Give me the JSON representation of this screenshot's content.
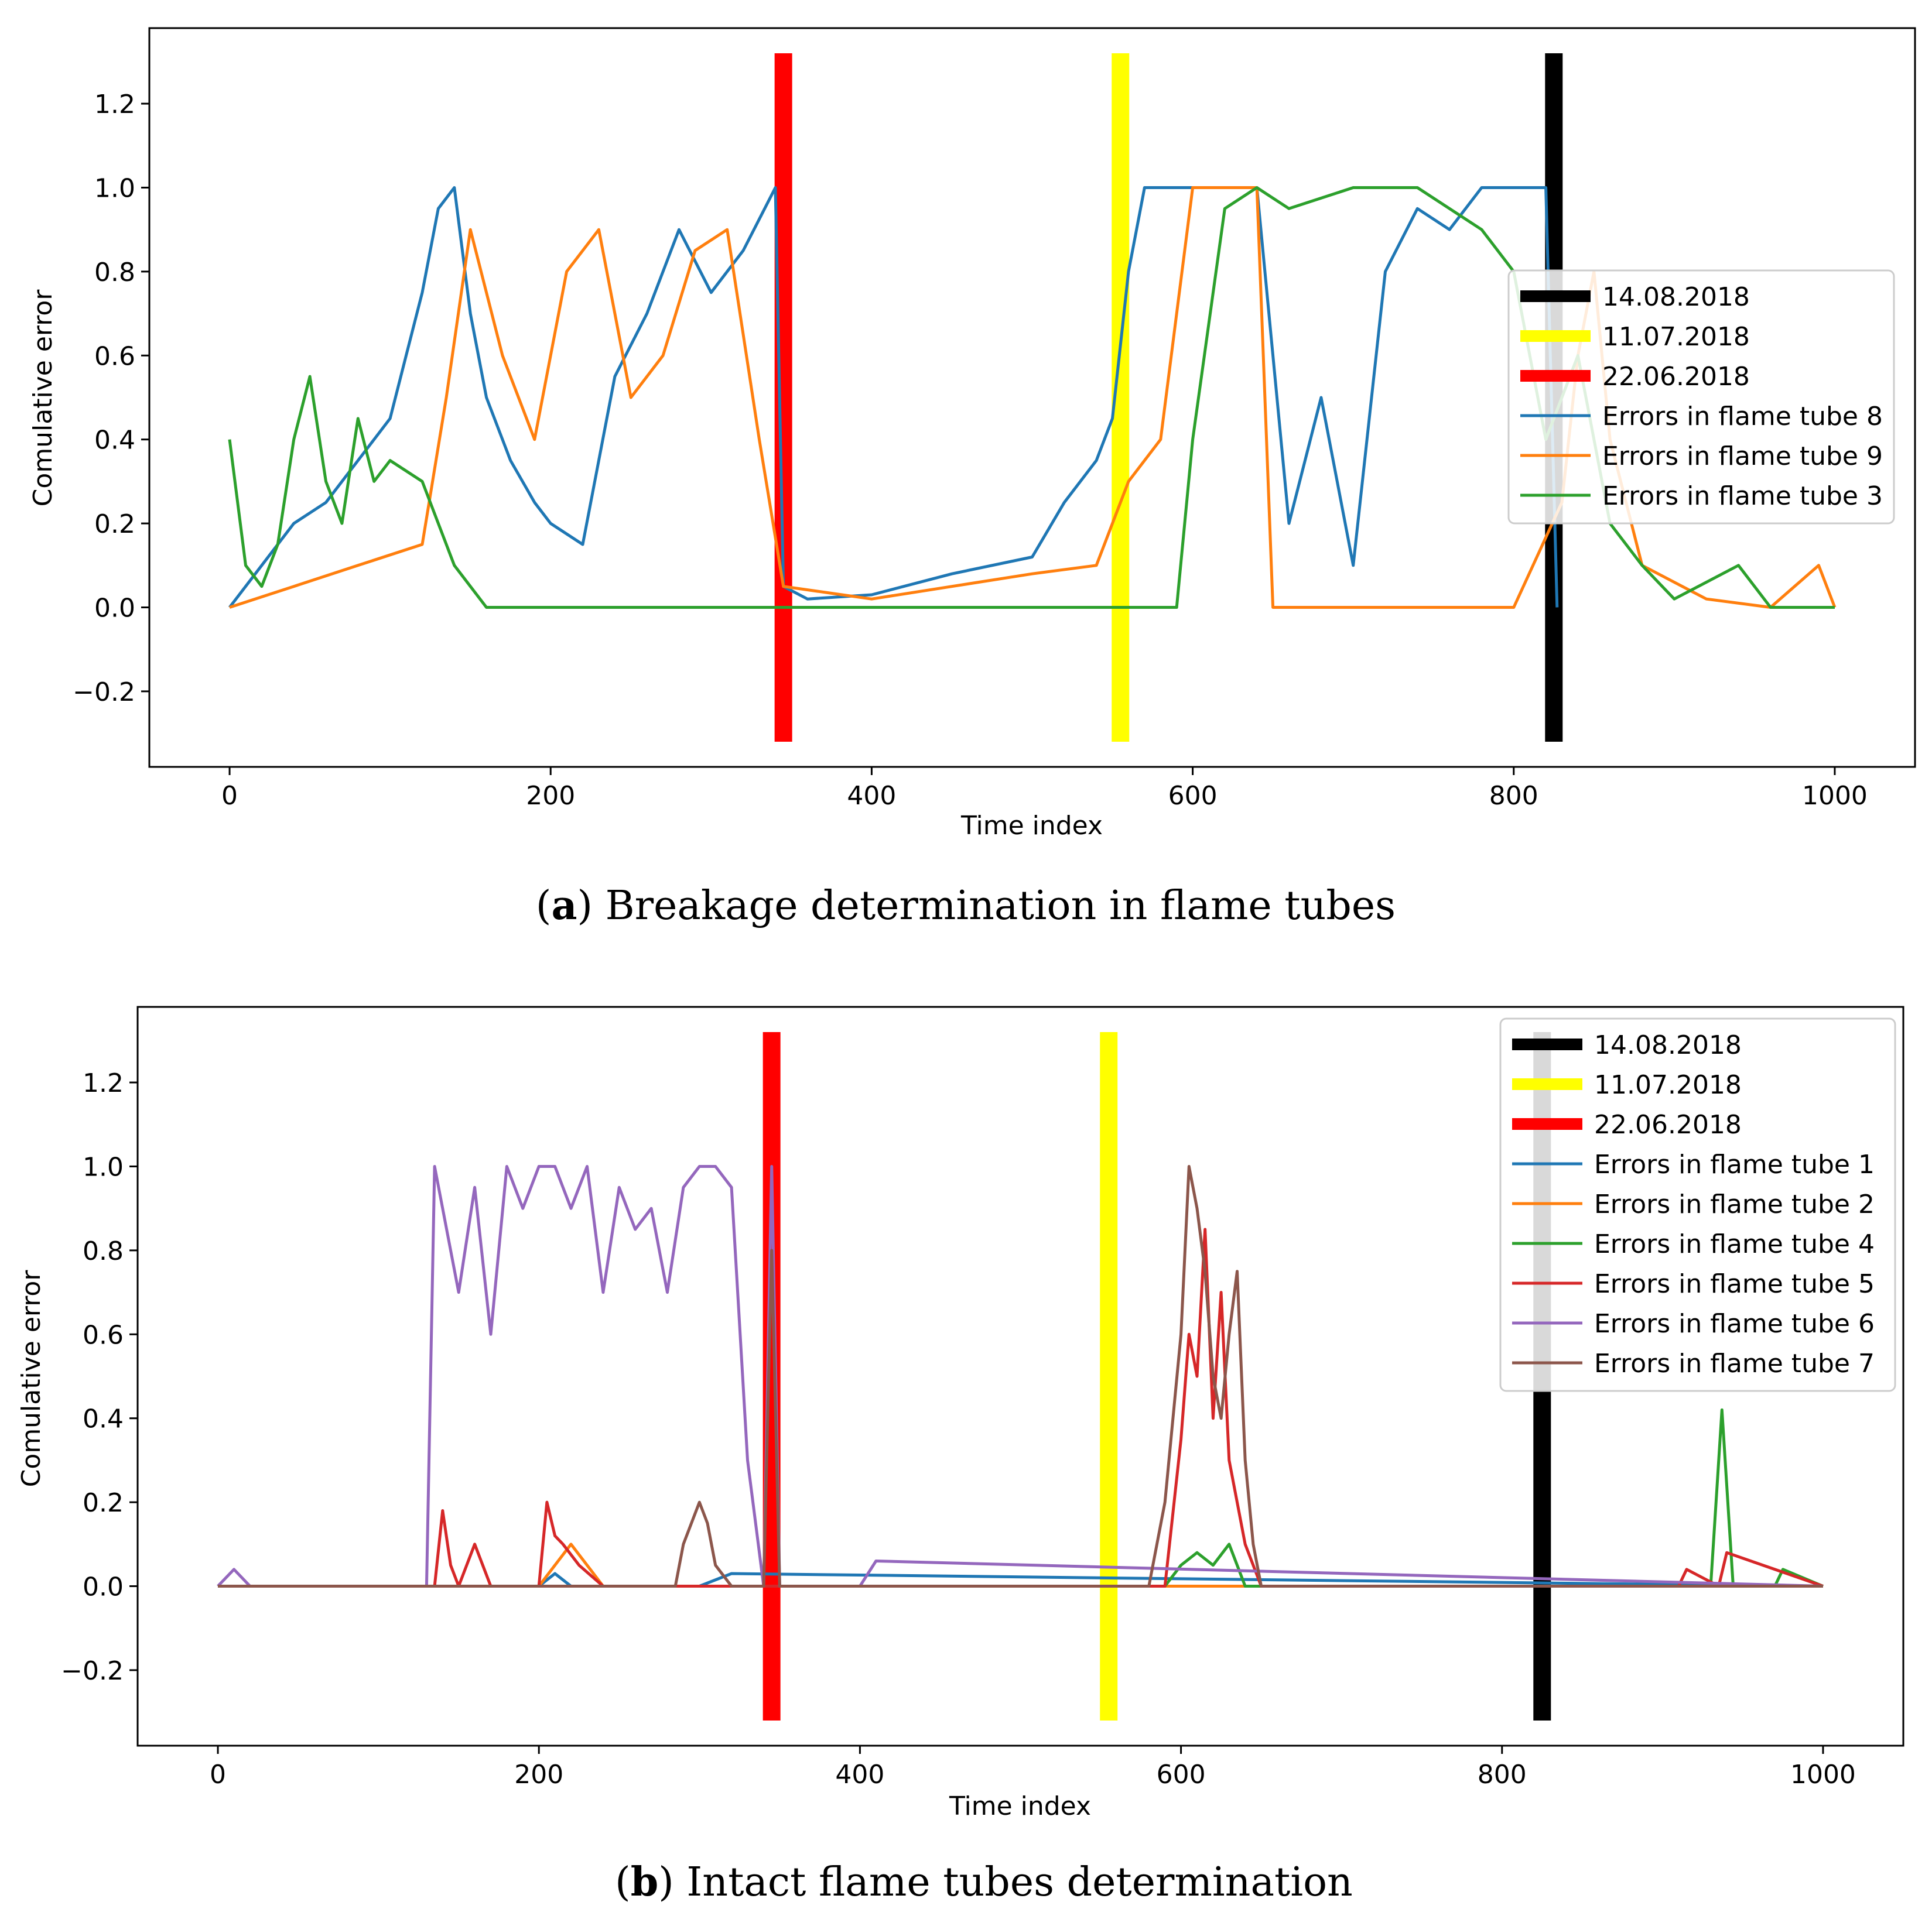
{
  "chart_data": [
    {
      "type": "line",
      "panel_letter": "a",
      "caption": "Breakage determination in flame tubes",
      "xlabel": "Time index",
      "ylabel": "Comulative error",
      "xlim": [
        -50,
        1050
      ],
      "ylim": [
        -0.38,
        1.38
      ],
      "x_ticks": [
        0,
        200,
        400,
        600,
        800,
        1000
      ],
      "y_ticks": [
        -0.2,
        0.0,
        0.2,
        0.4,
        0.6,
        0.8,
        1.0,
        1.2
      ],
      "y_tick_labels": [
        "−0.2",
        "0.0",
        "0.2",
        "0.4",
        "0.6",
        "0.8",
        "1.0",
        "1.2"
      ],
      "markers": [
        {
          "label": "14.08.2018",
          "x": 825,
          "color": "#000000",
          "y_range": [
            -0.32,
            1.32
          ]
        },
        {
          "label": "11.07.2018",
          "x": 555,
          "color": "#ffff00",
          "y_range": [
            -0.32,
            1.32
          ]
        },
        {
          "label": "22.06.2018",
          "x": 345,
          "color": "#ff0000",
          "y_range": [
            -0.32,
            1.32
          ]
        }
      ],
      "series": [
        {
          "name": "Errors in flame tube 8",
          "color": "#1f77b4",
          "x": [
            0,
            20,
            40,
            60,
            80,
            100,
            110,
            120,
            130,
            140,
            150,
            160,
            175,
            190,
            200,
            220,
            240,
            260,
            280,
            300,
            320,
            340,
            345,
            360,
            400,
            450,
            500,
            520,
            540,
            550,
            560,
            570,
            600,
            640,
            660,
            680,
            700,
            720,
            740,
            760,
            780,
            800,
            820,
            827
          ],
          "values": [
            0.0,
            0.1,
            0.2,
            0.25,
            0.35,
            0.45,
            0.6,
            0.75,
            0.95,
            1.0,
            0.7,
            0.5,
            0.35,
            0.25,
            0.2,
            0.15,
            0.55,
            0.7,
            0.9,
            0.75,
            0.85,
            1.0,
            0.05,
            0.02,
            0.03,
            0.08,
            0.12,
            0.25,
            0.35,
            0.45,
            0.8,
            1.0,
            1.0,
            1.0,
            0.2,
            0.5,
            0.1,
            0.8,
            0.95,
            0.9,
            1.0,
            1.0,
            1.0,
            0.0
          ]
        },
        {
          "name": "Errors in flame tube 9",
          "color": "#ff7f0e",
          "x": [
            0,
            40,
            80,
            120,
            135,
            150,
            170,
            190,
            210,
            230,
            250,
            270,
            290,
            310,
            330,
            345,
            400,
            450,
            500,
            540,
            560,
            580,
            600,
            620,
            640,
            650,
            700,
            800,
            830,
            840,
            850,
            860,
            880,
            920,
            960,
            990,
            1000
          ],
          "values": [
            0.0,
            0.05,
            0.1,
            0.15,
            0.5,
            0.9,
            0.6,
            0.4,
            0.8,
            0.9,
            0.5,
            0.6,
            0.85,
            0.9,
            0.4,
            0.05,
            0.02,
            0.05,
            0.08,
            0.1,
            0.3,
            0.4,
            1.0,
            1.0,
            1.0,
            0.0,
            0.0,
            0.0,
            0.25,
            0.6,
            0.8,
            0.4,
            0.1,
            0.02,
            0.0,
            0.1,
            0.0
          ]
        },
        {
          "name": "Errors in flame tube 3",
          "color": "#2ca02c",
          "x": [
            0,
            10,
            20,
            30,
            40,
            50,
            60,
            70,
            80,
            90,
            100,
            120,
            140,
            160,
            200,
            300,
            400,
            500,
            590,
            600,
            620,
            640,
            660,
            700,
            740,
            780,
            800,
            820,
            840,
            860,
            880,
            900,
            940,
            960,
            1000
          ],
          "values": [
            0.4,
            0.1,
            0.05,
            0.15,
            0.4,
            0.55,
            0.3,
            0.2,
            0.45,
            0.3,
            0.35,
            0.3,
            0.1,
            0.0,
            0.0,
            0.0,
            0.0,
            0.0,
            0.0,
            0.4,
            0.95,
            1.0,
            0.95,
            1.0,
            1.0,
            0.9,
            0.8,
            0.4,
            0.6,
            0.2,
            0.1,
            0.02,
            0.1,
            0.0,
            0.0
          ]
        }
      ]
    },
    {
      "type": "line",
      "panel_letter": "b",
      "caption": "Intact flame tubes determination",
      "xlabel": "Time index",
      "ylabel": "Comulative error",
      "xlim": [
        -50,
        1050
      ],
      "ylim": [
        -0.38,
        1.38
      ],
      "x_ticks": [
        0,
        200,
        400,
        600,
        800,
        1000
      ],
      "y_ticks": [
        -0.2,
        0.0,
        0.2,
        0.4,
        0.6,
        0.8,
        1.0,
        1.2
      ],
      "y_tick_labels": [
        "−0.2",
        "0.0",
        "0.2",
        "0.4",
        "0.6",
        "0.8",
        "1.0",
        "1.2"
      ],
      "markers": [
        {
          "label": "14.08.2018",
          "x": 825,
          "color": "#000000",
          "y_range": [
            -0.32,
            1.32
          ]
        },
        {
          "label": "11.07.2018",
          "x": 555,
          "color": "#ffff00",
          "y_range": [
            -0.32,
            1.32
          ]
        },
        {
          "label": "22.06.2018",
          "x": 345,
          "color": "#ff0000",
          "y_range": [
            -0.32,
            1.32
          ]
        }
      ],
      "series": [
        {
          "name": "Errors in flame tube 1",
          "color": "#1f77b4",
          "x": [
            0,
            200,
            210,
            220,
            300,
            320,
            1000
          ],
          "values": [
            0.0,
            0.0,
            0.03,
            0.0,
            0.0,
            0.03,
            0.0
          ]
        },
        {
          "name": "Errors in flame tube 2",
          "color": "#ff7f0e",
          "x": [
            0,
            200,
            210,
            220,
            230,
            240,
            1000
          ],
          "values": [
            0.0,
            0.0,
            0.05,
            0.1,
            0.05,
            0.0,
            0.0
          ]
        },
        {
          "name": "Errors in flame tube 4",
          "color": "#2ca02c",
          "x": [
            0,
            590,
            600,
            610,
            620,
            630,
            640,
            930,
            937,
            944,
            970,
            975,
            1000
          ],
          "values": [
            0.0,
            0.0,
            0.05,
            0.08,
            0.05,
            0.1,
            0.0,
            0.0,
            0.42,
            0.0,
            0.0,
            0.04,
            0.0
          ]
        },
        {
          "name": "Errors in flame tube 5",
          "color": "#d62728",
          "x": [
            0,
            135,
            140,
            145,
            150,
            160,
            165,
            170,
            200,
            205,
            210,
            215,
            225,
            240,
            590,
            600,
            605,
            610,
            615,
            620,
            625,
            630,
            640,
            650,
            910,
            915,
            935,
            940,
            1000
          ],
          "values": [
            0.0,
            0.0,
            0.18,
            0.05,
            0.0,
            0.1,
            0.05,
            0.0,
            0.0,
            0.2,
            0.12,
            0.1,
            0.05,
            0.0,
            0.0,
            0.35,
            0.6,
            0.5,
            0.85,
            0.4,
            0.7,
            0.3,
            0.1,
            0.0,
            0.0,
            0.04,
            0.0,
            0.08,
            0.0
          ]
        },
        {
          "name": "Errors in flame tube 6",
          "color": "#9467bd",
          "x": [
            0,
            10,
            20,
            130,
            135,
            140,
            150,
            160,
            170,
            180,
            190,
            200,
            210,
            220,
            230,
            240,
            250,
            260,
            270,
            280,
            290,
            300,
            310,
            320,
            330,
            340,
            345,
            350,
            400,
            410,
            1000
          ],
          "values": [
            0.0,
            0.04,
            0.0,
            0.0,
            1.0,
            0.9,
            0.7,
            0.95,
            0.6,
            1.0,
            0.9,
            1.0,
            1.0,
            0.9,
            1.0,
            0.7,
            0.95,
            0.85,
            0.9,
            0.7,
            0.95,
            1.0,
            1.0,
            0.95,
            0.3,
            0.0,
            1.0,
            0.0,
            0.0,
            0.06,
            0.0
          ]
        },
        {
          "name": "Errors in flame tube 7",
          "color": "#8c564b",
          "x": [
            0,
            285,
            290,
            300,
            305,
            310,
            320,
            340,
            345,
            350,
            580,
            590,
            600,
            605,
            610,
            615,
            620,
            625,
            630,
            635,
            640,
            645,
            650,
            1000
          ],
          "values": [
            0.0,
            0.0,
            0.1,
            0.2,
            0.15,
            0.05,
            0.0,
            0.0,
            0.8,
            0.0,
            0.0,
            0.2,
            0.6,
            1.0,
            0.9,
            0.75,
            0.5,
            0.4,
            0.6,
            0.75,
            0.3,
            0.1,
            0.0,
            0.0
          ]
        }
      ]
    }
  ]
}
